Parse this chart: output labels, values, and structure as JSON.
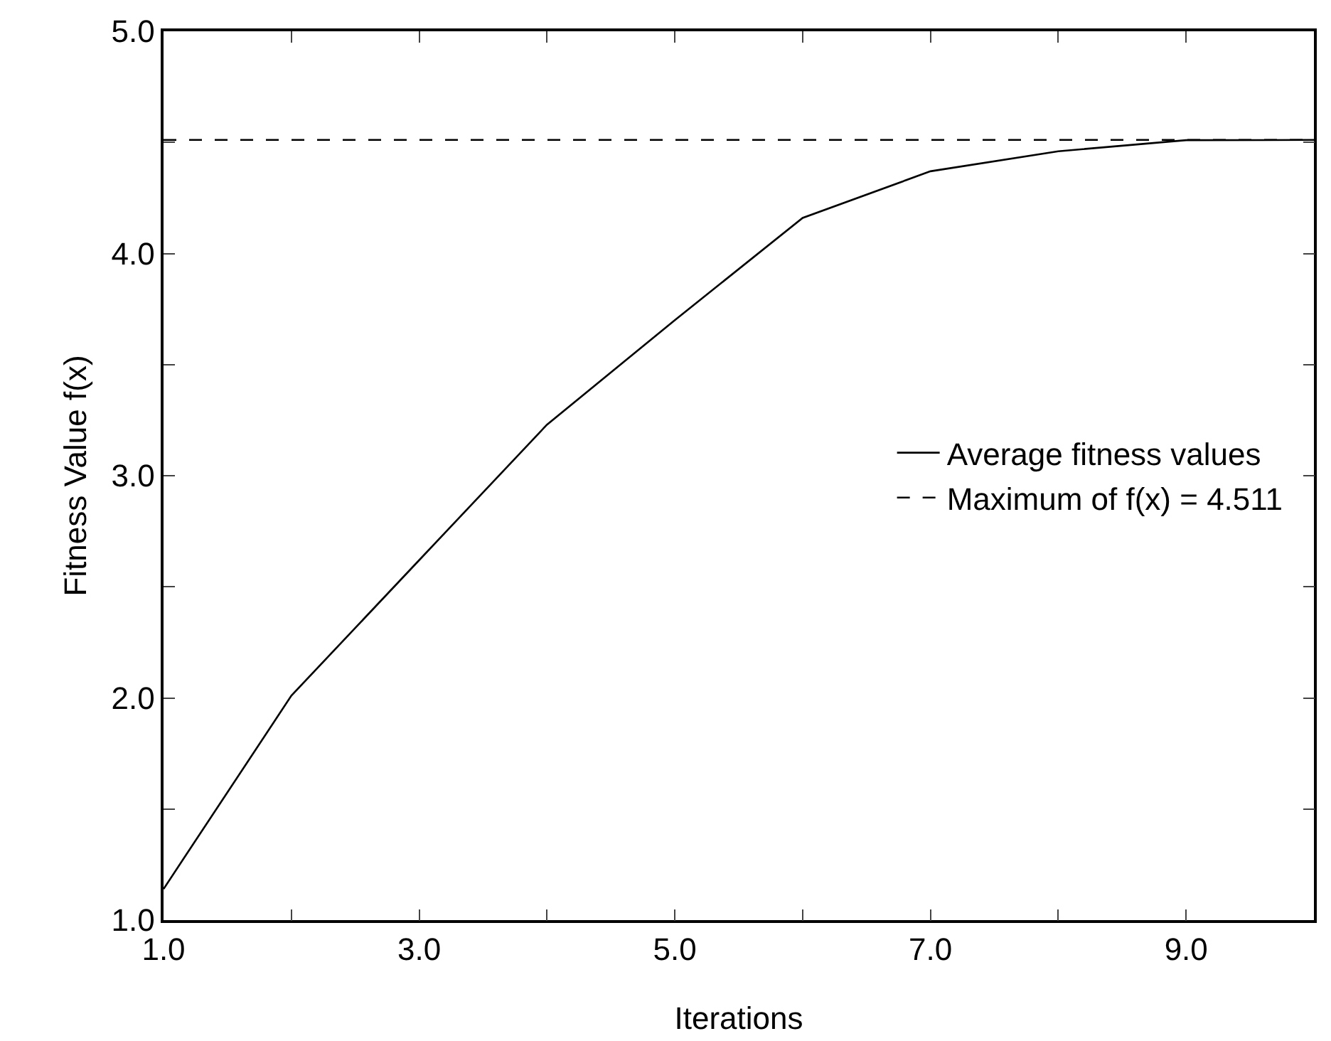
{
  "chart_data": {
    "type": "line",
    "xlabel": "Iterations",
    "ylabel": "Fitness Value f(x)",
    "x": [
      1,
      2,
      3,
      4,
      5,
      6,
      7,
      8,
      9,
      10
    ],
    "series": [
      {
        "name": "Average fitness values",
        "color": "#000000",
        "line_style": "solid",
        "values": [
          1.14,
          2.01,
          2.62,
          3.23,
          3.7,
          4.16,
          4.37,
          4.46,
          4.51,
          4.511
        ]
      },
      {
        "name": "Maximum of f(x) = 4.511",
        "color": "#000000",
        "line_style": "dashed",
        "x": [
          1,
          10
        ],
        "values": [
          4.511,
          4.511
        ]
      }
    ],
    "xlim": [
      1,
      10
    ],
    "xticks": [
      {
        "value": 1,
        "label": "1.0"
      },
      {
        "value": 2,
        "label": null
      },
      {
        "value": 3,
        "label": "3.0"
      },
      {
        "value": 4,
        "label": null
      },
      {
        "value": 5,
        "label": "5.0"
      },
      {
        "value": 6,
        "label": null
      },
      {
        "value": 7,
        "label": "7.0"
      },
      {
        "value": 8,
        "label": null
      },
      {
        "value": 9,
        "label": "9.0"
      }
    ],
    "ylim": [
      1,
      5
    ],
    "yticks": [
      {
        "value": 1,
        "label": "1.0"
      },
      {
        "value": 1.5,
        "label": null
      },
      {
        "value": 2,
        "label": "2.0"
      },
      {
        "value": 2.5,
        "label": null
      },
      {
        "value": 3,
        "label": "3.0"
      },
      {
        "value": 3.5,
        "label": null
      },
      {
        "value": 4,
        "label": "4.0"
      },
      {
        "value": 4.5,
        "label": null
      },
      {
        "value": 5,
        "label": "5.0"
      }
    ],
    "grid": false,
    "legend": "right",
    "marker": "none"
  }
}
